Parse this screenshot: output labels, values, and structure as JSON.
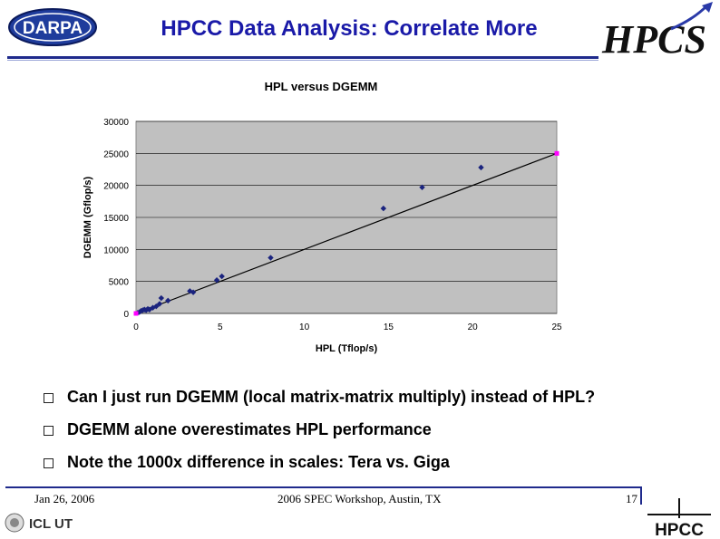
{
  "header": {
    "title": "HPCC Data Analysis: Correlate More",
    "left_logo_text": "DARPA",
    "right_logo_text": "HPCS"
  },
  "chart_data": {
    "type": "scatter",
    "title": "HPL versus DGEMM",
    "xlabel": "HPL (Tflop/s)",
    "ylabel": "DGEMM (Gflop/s)",
    "xlim": [
      0,
      25
    ],
    "ylim": [
      0,
      30000
    ],
    "x_ticks": [
      "0",
      "5",
      "10",
      "15",
      "20",
      "25"
    ],
    "y_ticks": [
      "0",
      "5000",
      "10000",
      "15000",
      "20000",
      "25000",
      "30000"
    ],
    "grid": "horizontal",
    "plot_background": "#c0c0c0",
    "series": [
      {
        "marker": "diamond",
        "color": "#1a237e",
        "points": [
          [
            0.1,
            100
          ],
          [
            0.2,
            200
          ],
          [
            0.3,
            400
          ],
          [
            0.4,
            500
          ],
          [
            0.5,
            600
          ],
          [
            0.6,
            500
          ],
          [
            0.7,
            700
          ],
          [
            0.8,
            600
          ],
          [
            1.0,
            900
          ],
          [
            1.2,
            1100
          ],
          [
            1.4,
            1500
          ],
          [
            1.5,
            2400
          ],
          [
            1.9,
            2000
          ],
          [
            3.2,
            3500
          ],
          [
            3.4,
            3300
          ],
          [
            4.8,
            5200
          ],
          [
            5.1,
            5800
          ],
          [
            8.0,
            8700
          ],
          [
            14.7,
            16400
          ],
          [
            17.0,
            19700
          ],
          [
            20.5,
            22800
          ]
        ]
      },
      {
        "marker": "square",
        "color": "#ff00ff",
        "points": [
          [
            0,
            0
          ],
          [
            25,
            25000
          ]
        ]
      }
    ],
    "trendline": {
      "from": [
        0,
        0
      ],
      "to": [
        25,
        25000
      ],
      "color": "#000000"
    }
  },
  "bullets": [
    "Can I just run DGEMM (local matrix-matrix multiply) instead of HPL?",
    "DGEMM alone overestimates HPL performance",
    "Note the 1000x difference in scales: Tera vs. Giga"
  ],
  "footer": {
    "date": "Jan 26, 2006",
    "event": "2006 SPEC Workshop, Austin, TX",
    "page": "17",
    "left_logo_text": "ICL UT",
    "right_logo_text": "HPCC"
  },
  "colors": {
    "title": "#1a1aa8",
    "rule": "#1f2a8c",
    "marker": "#1a237e",
    "endpoint": "#ff00ff"
  }
}
